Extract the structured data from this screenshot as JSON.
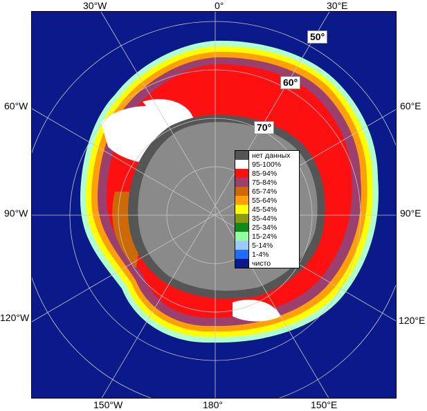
{
  "edge_labels": {
    "top_left": "30°W",
    "top_center": "0°",
    "top_right": "30°E",
    "left_upper": "60°W",
    "left_middle": "90°W",
    "left_lower": "120°W",
    "right_upper": "60°E",
    "right_middle": "90°E",
    "right_lower": "120°E",
    "bottom_left": "150°W",
    "bottom_center": "180°",
    "bottom_right": "150°E"
  },
  "lat_labels": {
    "lat50": "50°",
    "lat60": "60°",
    "lat70": "70°"
  },
  "legend": [
    {
      "label": "нет данных",
      "color": "#555555"
    },
    {
      "label": "95-100%",
      "color": "#ffffff"
    },
    {
      "label": "85-94%",
      "color": "#ff1010"
    },
    {
      "label": "75-84%",
      "color": "#9a3f6e"
    },
    {
      "label": "65-74%",
      "color": "#cc6a08"
    },
    {
      "label": "55-64%",
      "color": "#ff9f0a"
    },
    {
      "label": "45-54%",
      "color": "#ffff00"
    },
    {
      "label": "35-44%",
      "color": "#8c9a10"
    },
    {
      "label": "25-34%",
      "color": "#0f8a18"
    },
    {
      "label": "15-24%",
      "color": "#90ffa0"
    },
    {
      "label": "5-14%",
      "color": "#9fc8ff"
    },
    {
      "label": "1-4%",
      "color": "#1f6cff"
    },
    {
      "label": "чисто",
      "color": "#0a1a8a"
    }
  ],
  "colors": {
    "ocean": "#0a1a8a",
    "land": "#8a8a8a",
    "land_dark": "#555555",
    "grid": "#c8c8c8"
  }
}
